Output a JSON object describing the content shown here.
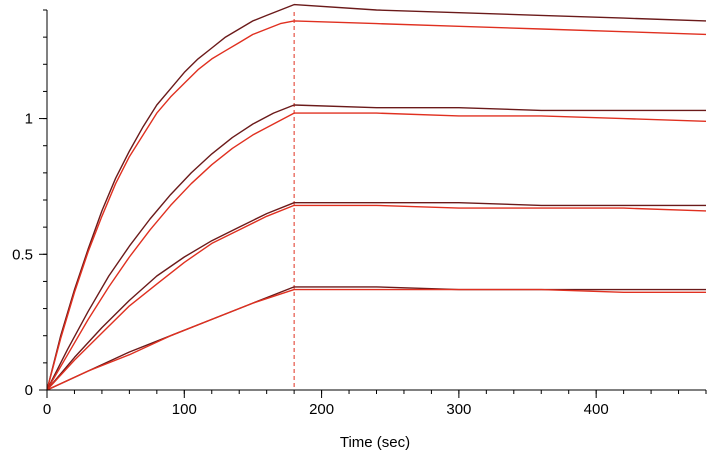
{
  "chart_data": {
    "type": "line",
    "title": "",
    "xlabel": "Time (sec)",
    "ylabel": "",
    "xlim": [
      0,
      480
    ],
    "ylim": [
      0,
      1.4
    ],
    "xticks": [
      0,
      100,
      200,
      300,
      400
    ],
    "xtick_labels": [
      "0",
      "100",
      "200",
      "300",
      "400"
    ],
    "yticks": [
      0,
      0.5,
      1
    ],
    "ytick_labels": [
      "0",
      "0.5",
      "1"
    ],
    "x_minor_step": 20,
    "y_minor_step": 0.1,
    "injection_end": 180,
    "series": [
      {
        "name": "measured-1",
        "kind": "measured",
        "color": "#6b1a1a",
        "x": [
          0,
          10,
          20,
          30,
          40,
          50,
          60,
          70,
          80,
          90,
          100,
          110,
          120,
          130,
          140,
          150,
          160,
          170,
          180,
          240,
          300,
          360,
          420,
          480
        ],
        "values": [
          0,
          0.2,
          0.37,
          0.52,
          0.66,
          0.78,
          0.88,
          0.97,
          1.05,
          1.11,
          1.17,
          1.22,
          1.26,
          1.3,
          1.33,
          1.36,
          1.38,
          1.4,
          1.42,
          1.4,
          1.39,
          1.38,
          1.37,
          1.36
        ]
      },
      {
        "name": "fit-1",
        "kind": "fit",
        "color": "#e03020",
        "x": [
          0,
          10,
          20,
          30,
          40,
          50,
          60,
          70,
          80,
          90,
          100,
          110,
          120,
          130,
          140,
          150,
          160,
          170,
          180,
          240,
          300,
          360,
          420,
          480
        ],
        "values": [
          0,
          0.19,
          0.36,
          0.51,
          0.64,
          0.76,
          0.86,
          0.94,
          1.02,
          1.08,
          1.13,
          1.18,
          1.22,
          1.25,
          1.28,
          1.31,
          1.33,
          1.35,
          1.36,
          1.35,
          1.34,
          1.33,
          1.32,
          1.31
        ]
      },
      {
        "name": "measured-2",
        "kind": "measured",
        "color": "#6b1a1a",
        "x": [
          0,
          15,
          30,
          45,
          60,
          75,
          90,
          105,
          120,
          135,
          150,
          165,
          180,
          240,
          300,
          360,
          420,
          480
        ],
        "values": [
          0,
          0.15,
          0.29,
          0.42,
          0.53,
          0.63,
          0.72,
          0.8,
          0.87,
          0.93,
          0.98,
          1.02,
          1.05,
          1.04,
          1.04,
          1.03,
          1.03,
          1.03
        ]
      },
      {
        "name": "fit-2",
        "kind": "fit",
        "color": "#e03020",
        "x": [
          0,
          15,
          30,
          45,
          60,
          75,
          90,
          105,
          120,
          135,
          150,
          165,
          180,
          240,
          300,
          360,
          420,
          480
        ],
        "values": [
          0,
          0.13,
          0.26,
          0.38,
          0.49,
          0.59,
          0.68,
          0.76,
          0.83,
          0.89,
          0.94,
          0.98,
          1.02,
          1.02,
          1.01,
          1.01,
          1.0,
          0.99
        ]
      },
      {
        "name": "measured-3",
        "kind": "measured",
        "color": "#6b1a1a",
        "x": [
          0,
          20,
          40,
          60,
          80,
          100,
          120,
          140,
          160,
          180,
          240,
          300,
          360,
          420,
          480
        ],
        "values": [
          0,
          0.12,
          0.23,
          0.33,
          0.42,
          0.49,
          0.55,
          0.6,
          0.65,
          0.69,
          0.69,
          0.69,
          0.68,
          0.68,
          0.68
        ]
      },
      {
        "name": "fit-3",
        "kind": "fit",
        "color": "#e03020",
        "x": [
          0,
          20,
          40,
          60,
          80,
          100,
          120,
          140,
          160,
          180,
          240,
          300,
          360,
          420,
          480
        ],
        "values": [
          0,
          0.11,
          0.21,
          0.31,
          0.39,
          0.47,
          0.54,
          0.59,
          0.64,
          0.68,
          0.68,
          0.67,
          0.67,
          0.67,
          0.66
        ]
      },
      {
        "name": "measured-4",
        "kind": "measured",
        "color": "#6b1a1a",
        "x": [
          0,
          30,
          60,
          90,
          120,
          150,
          180,
          240,
          300,
          360,
          420,
          480
        ],
        "values": [
          0,
          0.07,
          0.14,
          0.2,
          0.26,
          0.32,
          0.38,
          0.38,
          0.37,
          0.37,
          0.37,
          0.37
        ]
      },
      {
        "name": "fit-4",
        "kind": "fit",
        "color": "#e03020",
        "x": [
          0,
          30,
          60,
          90,
          120,
          150,
          180,
          240,
          300,
          360,
          420,
          480
        ],
        "values": [
          0,
          0.07,
          0.13,
          0.2,
          0.26,
          0.32,
          0.37,
          0.37,
          0.37,
          0.37,
          0.36,
          0.36
        ]
      }
    ]
  }
}
